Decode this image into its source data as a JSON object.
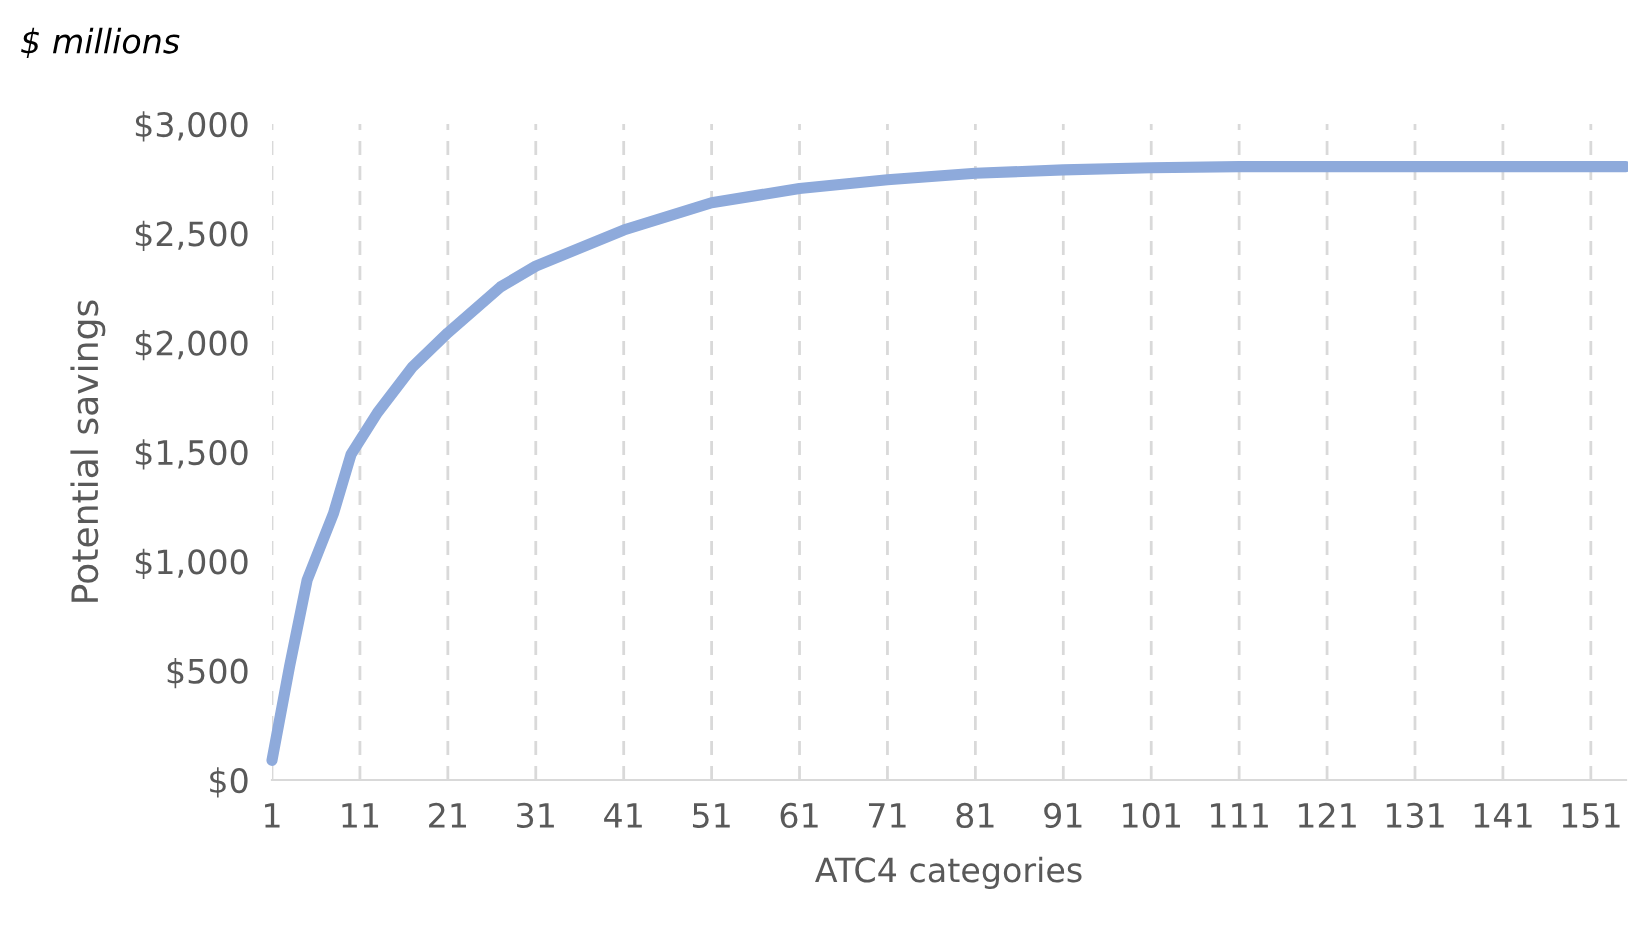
{
  "chart_data": {
    "type": "line",
    "title": "$ millions",
    "xlabel": "ATC4 categories",
    "ylabel": "Potential savings",
    "x": [
      1,
      3,
      5,
      8,
      10,
      13,
      17,
      21,
      27,
      31,
      41,
      51,
      61,
      71,
      81,
      91,
      101,
      111,
      155
    ],
    "series": [
      {
        "color": "#8eaadb",
        "values": [
          90,
          520,
          915,
          1220,
          1490,
          1680,
          1890,
          2045,
          2255,
          2350,
          2515,
          2640,
          2705,
          2745,
          2775,
          2790,
          2800,
          2805,
          2805
        ]
      }
    ],
    "xlim": [
      1,
      155
    ],
    "xticks": [
      1,
      11,
      21,
      31,
      41,
      51,
      61,
      71,
      81,
      91,
      101,
      111,
      121,
      131,
      141,
      151
    ],
    "ylim": [
      0,
      3000
    ],
    "yticks": [
      {
        "value": 0,
        "label": "$0"
      },
      {
        "value": 500,
        "label": "$500"
      },
      {
        "value": 1000,
        "label": "$1,000"
      },
      {
        "value": 1500,
        "label": "$1,500"
      },
      {
        "value": 2000,
        "label": "$2,000"
      },
      {
        "value": 2500,
        "label": "$2,500"
      },
      {
        "value": 3000,
        "label": "$3,000"
      }
    ],
    "grid": "x",
    "marker": "none",
    "line_style": "solid"
  }
}
